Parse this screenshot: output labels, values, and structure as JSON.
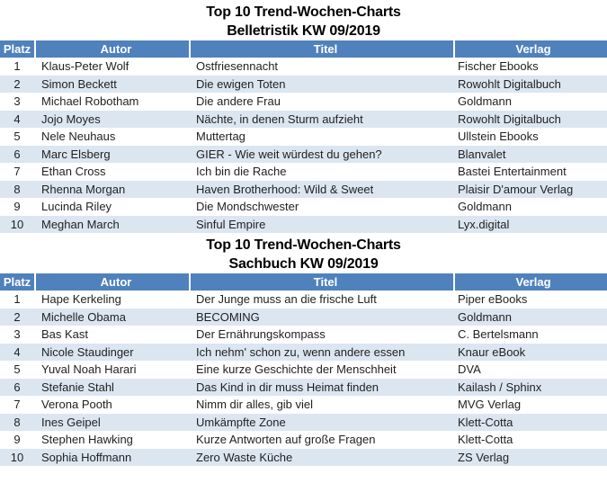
{
  "colors": {
    "header_bg": "#4F81BD",
    "header_text": "#FFFFFF",
    "banded_row_bg": "#DCE6F1",
    "plain_row_bg": "#FFFFFF",
    "title_text": "#000000",
    "body_text": "#1F1F1F"
  },
  "tables": [
    {
      "title_line1": "Top 10 Trend-Wochen-Charts",
      "title_line2": "Belletristik KW 09/2019",
      "columns": [
        "Platz",
        "Autor",
        "Titel",
        "Verlag"
      ],
      "rows": [
        [
          "1",
          "Klaus-Peter Wolf",
          "Ostfriesennacht",
          "Fischer Ebooks"
        ],
        [
          "2",
          "Simon Beckett",
          "Die ewigen Toten",
          "Rowohlt Digitalbuch"
        ],
        [
          "3",
          "Michael Robotham",
          "Die andere Frau",
          "Goldmann"
        ],
        [
          "4",
          "Jojo Moyes",
          "Nächte, in denen Sturm aufzieht",
          "Rowohlt Digitalbuch"
        ],
        [
          "5",
          "Nele Neuhaus",
          "Muttertag",
          "Ullstein Ebooks"
        ],
        [
          "6",
          "Marc Elsberg",
          "GIER - Wie weit würdest du gehen?",
          "Blanvalet"
        ],
        [
          "7",
          "Ethan Cross",
          "Ich bin die Rache",
          "Bastei Entertainment"
        ],
        [
          "8",
          "Rhenna Morgan",
          "Haven Brotherhood: Wild & Sweet",
          "Plaisir D'amour Verlag"
        ],
        [
          "9",
          "Lucinda Riley",
          "Die Mondschwester",
          "Goldmann"
        ],
        [
          "10",
          "Meghan March",
          "Sinful Empire",
          "Lyx.digital"
        ]
      ]
    },
    {
      "title_line1": "Top 10 Trend-Wochen-Charts",
      "title_line2": "Sachbuch KW 09/2019",
      "columns": [
        "Platz",
        "Autor",
        "Titel",
        "Verlag"
      ],
      "rows": [
        [
          "1",
          "Hape Kerkeling",
          "Der Junge muss an die frische Luft",
          "Piper eBooks"
        ],
        [
          "2",
          "Michelle Obama",
          "BECOMING",
          "Goldmann"
        ],
        [
          "3",
          "Bas Kast",
          "Der Ernährungskompass",
          "C. Bertelsmann"
        ],
        [
          "4",
          "Nicole Staudinger",
          "Ich nehm' schon zu, wenn andere essen",
          "Knaur eBook"
        ],
        [
          "5",
          "Yuval Noah Harari",
          "Eine kurze Geschichte der Menschheit",
          "DVA"
        ],
        [
          "6",
          "Stefanie Stahl",
          "Das Kind in dir muss Heimat finden",
          "Kailash / Sphinx"
        ],
        [
          "7",
          "Verona Pooth",
          "Nimm dir alles, gib viel",
          "MVG Verlag"
        ],
        [
          "8",
          "Ines Geipel",
          "Umkämpfte Zone",
          "Klett-Cotta"
        ],
        [
          "9",
          "Stephen Hawking",
          "Kurze Antworten auf große Fragen",
          "Klett-Cotta"
        ],
        [
          "10",
          "Sophia Hoffmann",
          "Zero Waste Küche",
          "ZS Verlag"
        ]
      ]
    }
  ]
}
